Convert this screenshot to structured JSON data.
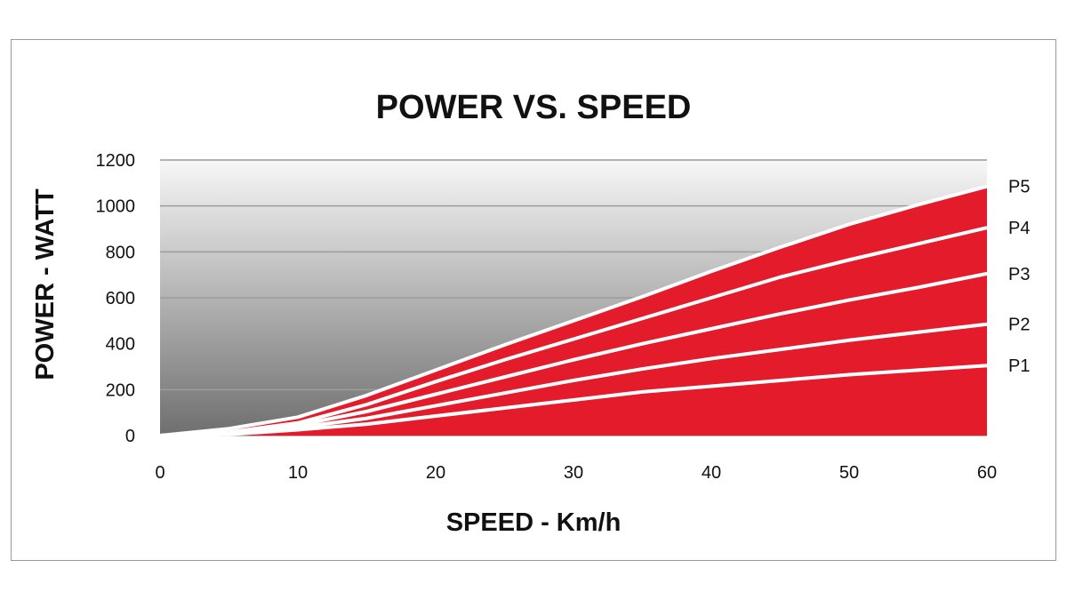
{
  "chart_data": {
    "type": "area",
    "title": "POWER VS. SPEED",
    "xlabel": "SPEED - Km/h",
    "ylabel": "POWER - WATT",
    "xlim": [
      0,
      60
    ],
    "ylim": [
      0,
      1200
    ],
    "x_ticks": [
      0,
      10,
      20,
      30,
      40,
      50,
      60
    ],
    "y_ticks": [
      0,
      200,
      400,
      600,
      800,
      1000,
      1200
    ],
    "grid": true,
    "colors": {
      "fill": "#e31b2b",
      "separator": "#ffffff",
      "background_top": "#f7f7f7",
      "background_bottom": "#6f6f6f"
    },
    "x": [
      0,
      5,
      10,
      15,
      20,
      25,
      30,
      35,
      40,
      45,
      50,
      55,
      60
    ],
    "series": [
      {
        "name": "P1",
        "values": [
          0,
          5,
          25,
          50,
          85,
          120,
          155,
          190,
          215,
          240,
          265,
          285,
          305
        ]
      },
      {
        "name": "P2",
        "values": [
          0,
          8,
          35,
          75,
          130,
          185,
          240,
          290,
          335,
          375,
          415,
          450,
          485
        ]
      },
      {
        "name": "P3",
        "values": [
          0,
          12,
          45,
          105,
          180,
          255,
          330,
          400,
          465,
          530,
          590,
          645,
          705
        ]
      },
      {
        "name": "P4",
        "values": [
          0,
          15,
          55,
          135,
          235,
          330,
          420,
          510,
          600,
          690,
          765,
          835,
          905
        ]
      },
      {
        "name": "P5",
        "values": [
          0,
          30,
          80,
          175,
          285,
          395,
          500,
          605,
          715,
          820,
          920,
          1005,
          1085
        ]
      }
    ]
  }
}
